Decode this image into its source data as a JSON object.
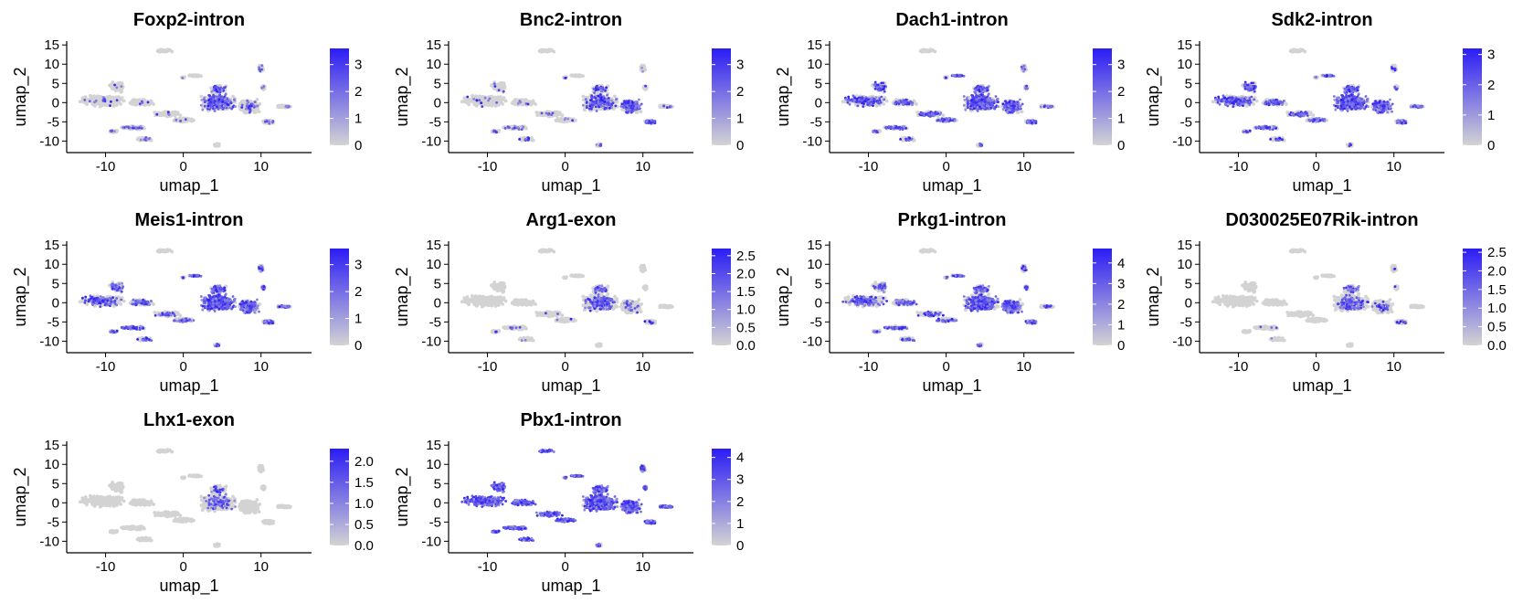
{
  "figure": {
    "colors": {
      "low": "#d3d3d3",
      "high": "#2b1cf5",
      "axis": "#000000",
      "text": "#000000",
      "background": "#ffffff"
    }
  },
  "chart_data": [
    {
      "type": "scatter",
      "title": "Foxp2-intron",
      "xlabel": "umap_1",
      "ylabel": "umap_2",
      "xlim": [
        -15,
        16.5
      ],
      "ylim": [
        -13,
        16
      ],
      "x_ticks": [
        -10,
        0,
        10
      ],
      "x_tick_labels": [
        "-10",
        "0",
        "10"
      ],
      "y_ticks": [
        15,
        10,
        5,
        0,
        -5,
        -10
      ],
      "y_tick_labels": [
        "15",
        "10",
        "5",
        "0",
        "-5",
        "-10"
      ],
      "legend": {
        "ticks": [
          0,
          1,
          2,
          3
        ],
        "labels": [
          "0",
          "1",
          "2",
          "3"
        ],
        "min": 0,
        "max": 3.6
      },
      "grid": false,
      "legend_position": "right",
      "expression": {
        "left": 0.04,
        "hub": 0.04,
        "center": 0.42,
        "right": 0.12,
        "tail": 0.08,
        "top_left": 0.0,
        "top_mid": 0.0,
        "top_right": 0.1,
        "lower_left": 0.18,
        "bottom_center": 0.05
      }
    },
    {
      "type": "scatter",
      "title": "Bnc2-intron",
      "xlabel": "umap_1",
      "ylabel": "umap_2",
      "xlim": [
        -15,
        16.5
      ],
      "ylim": [
        -13,
        16
      ],
      "x_ticks": [
        -10,
        0,
        10
      ],
      "x_tick_labels": [
        "-10",
        "0",
        "10"
      ],
      "y_ticks": [
        15,
        10,
        5,
        0,
        -5,
        -10
      ],
      "y_tick_labels": [
        "15",
        "10",
        "5",
        "0",
        "-5",
        "-10"
      ],
      "legend": {
        "ticks": [
          0,
          1,
          2,
          3
        ],
        "labels": [
          "0",
          "1",
          "2",
          "3"
        ],
        "min": 0,
        "max": 3.6
      },
      "grid": false,
      "legend_position": "right",
      "expression": {
        "left": 0.04,
        "hub": 0.05,
        "center": 0.28,
        "right": 0.62,
        "tail": 0.12,
        "top_left": 0.0,
        "top_mid": 0.0,
        "top_right": 0.06,
        "lower_left": 0.15,
        "bottom_center": 0.2
      }
    },
    {
      "type": "scatter",
      "title": "Dach1-intron",
      "xlabel": "umap_1",
      "ylabel": "umap_2",
      "xlim": [
        -15,
        16.5
      ],
      "ylim": [
        -13,
        16
      ],
      "x_ticks": [
        -10,
        0,
        10
      ],
      "x_tick_labels": [
        "-10",
        "0",
        "10"
      ],
      "y_ticks": [
        15,
        10,
        5,
        0,
        -5,
        -10
      ],
      "y_tick_labels": [
        "15",
        "10",
        "5",
        "0",
        "-5",
        "-10"
      ],
      "legend": {
        "ticks": [
          0,
          1,
          2,
          3
        ],
        "labels": [
          "0",
          "1",
          "2",
          "3"
        ],
        "min": 0,
        "max": 3.6
      },
      "grid": false,
      "legend_position": "right",
      "expression": {
        "left": 0.45,
        "hub": 0.5,
        "center": 0.7,
        "right": 0.55,
        "tail": 0.3,
        "top_left": 0.0,
        "top_mid": 0.6,
        "top_right": 0.15,
        "lower_left": 0.35,
        "bottom_center": 0.25
      }
    },
    {
      "type": "scatter",
      "title": "Sdk2-intron",
      "xlabel": "umap_1",
      "ylabel": "umap_2",
      "xlim": [
        -15,
        16.5
      ],
      "ylim": [
        -13,
        16
      ],
      "x_ticks": [
        -10,
        0,
        10
      ],
      "x_tick_labels": [
        "-10",
        "0",
        "10"
      ],
      "y_ticks": [
        15,
        10,
        5,
        0,
        -5,
        -10
      ],
      "y_tick_labels": [
        "15",
        "10",
        "5",
        "0",
        "-5",
        "-10"
      ],
      "legend": {
        "ticks": [
          0,
          1,
          2,
          3
        ],
        "labels": [
          "0",
          "1",
          "2",
          "3"
        ],
        "min": 0,
        "max": 3.2
      },
      "grid": false,
      "legend_position": "right",
      "expression": {
        "left": 0.55,
        "hub": 0.45,
        "center": 0.7,
        "right": 0.6,
        "tail": 0.35,
        "top_left": 0.0,
        "top_mid": 0.5,
        "top_right": 0.15,
        "lower_left": 0.3,
        "bottom_center": 0.15
      }
    },
    {
      "type": "scatter",
      "title": "Meis1-intron",
      "xlabel": "umap_1",
      "ylabel": "umap_2",
      "xlim": [
        -15,
        16.5
      ],
      "ylim": [
        -13,
        16
      ],
      "x_ticks": [
        -10,
        0,
        10
      ],
      "x_tick_labels": [
        "-10",
        "0",
        "10"
      ],
      "y_ticks": [
        15,
        10,
        5,
        0,
        -5,
        -10
      ],
      "y_tick_labels": [
        "15",
        "10",
        "5",
        "0",
        "-5",
        "-10"
      ],
      "legend": {
        "ticks": [
          0,
          1,
          2,
          3
        ],
        "labels": [
          "0",
          "1",
          "2",
          "3"
        ],
        "min": 0,
        "max": 3.6
      },
      "grid": false,
      "legend_position": "right",
      "expression": {
        "left": 0.4,
        "hub": 0.25,
        "center": 0.7,
        "right": 0.65,
        "tail": 0.45,
        "top_left": 0.0,
        "top_mid": 0.75,
        "top_right": 0.35,
        "lower_left": 0.45,
        "bottom_center": 0.4
      }
    },
    {
      "type": "scatter",
      "title": "Arg1-exon",
      "xlabel": "umap_1",
      "ylabel": "umap_2",
      "xlim": [
        -15,
        16.5
      ],
      "ylim": [
        -13,
        16
      ],
      "x_ticks": [
        -10,
        0,
        10
      ],
      "x_tick_labels": [
        "-10",
        "0",
        "10"
      ],
      "y_ticks": [
        15,
        10,
        5,
        0,
        -5,
        -10
      ],
      "y_tick_labels": [
        "15",
        "10",
        "5",
        "0",
        "-5",
        "-10"
      ],
      "legend": {
        "ticks": [
          0,
          0.5,
          1,
          1.5,
          2,
          2.5
        ],
        "labels": [
          "0.0",
          "0.5",
          "1.0",
          "1.5",
          "2.0",
          "2.5"
        ],
        "min": 0,
        "max": 2.7
      },
      "grid": false,
      "legend_position": "right",
      "expression": {
        "left": 0.0,
        "hub": 0.02,
        "center": 0.25,
        "right": 0.1,
        "tail": 0.0,
        "top_left": 0.0,
        "top_mid": 0.0,
        "top_right": 0.0,
        "lower_left": 0.05,
        "bottom_center": 0.0
      }
    },
    {
      "type": "scatter",
      "title": "Prkg1-intron",
      "xlabel": "umap_1",
      "ylabel": "umap_2",
      "xlim": [
        -15,
        16.5
      ],
      "ylim": [
        -13,
        16
      ],
      "x_ticks": [
        -10,
        0,
        10
      ],
      "x_tick_labels": [
        "-10",
        "0",
        "10"
      ],
      "y_ticks": [
        15,
        10,
        5,
        0,
        -5,
        -10
      ],
      "y_tick_labels": [
        "15",
        "10",
        "5",
        "0",
        "-5",
        "-10"
      ],
      "legend": {
        "ticks": [
          0,
          1,
          2,
          3,
          4
        ],
        "labels": [
          "0",
          "1",
          "2",
          "3",
          "4"
        ],
        "min": 0,
        "max": 4.7
      },
      "grid": false,
      "legend_position": "right",
      "expression": {
        "left": 0.35,
        "hub": 0.3,
        "center": 0.6,
        "right": 0.65,
        "tail": 0.2,
        "top_left": 0.0,
        "top_mid": 0.6,
        "top_right": 0.35,
        "lower_left": 0.3,
        "bottom_center": 0.35
      }
    },
    {
      "type": "scatter",
      "title": "D030025E07Rik-intron",
      "xlabel": "umap_1",
      "ylabel": "umap_2",
      "xlim": [
        -15,
        16.5
      ],
      "ylim": [
        -13,
        16
      ],
      "x_ticks": [
        -10,
        0,
        10
      ],
      "x_tick_labels": [
        "-10",
        "0",
        "10"
      ],
      "y_ticks": [
        15,
        10,
        5,
        0,
        -5,
        -10
      ],
      "y_tick_labels": [
        "15",
        "10",
        "5",
        "0",
        "-5",
        "-10"
      ],
      "legend": {
        "ticks": [
          0,
          0.5,
          1,
          1.5,
          2,
          2.5
        ],
        "labels": [
          "0.0",
          "0.5",
          "1.0",
          "1.5",
          "2.0",
          "2.5"
        ],
        "min": 0,
        "max": 2.6
      },
      "grid": false,
      "legend_position": "right",
      "expression": {
        "left": 0.0,
        "hub": 0.0,
        "center": 0.2,
        "right": 0.12,
        "tail": 0.0,
        "top_left": 0.0,
        "top_mid": 0.0,
        "top_right": 0.05,
        "lower_left": 0.02,
        "bottom_center": 0.0
      }
    },
    {
      "type": "scatter",
      "title": "Lhx1-exon",
      "xlabel": "umap_1",
      "ylabel": "umap_2",
      "xlim": [
        -15,
        16.5
      ],
      "ylim": [
        -13,
        16
      ],
      "x_ticks": [
        -10,
        0,
        10
      ],
      "x_tick_labels": [
        "-10",
        "0",
        "10"
      ],
      "y_ticks": [
        15,
        10,
        5,
        0,
        -5,
        -10
      ],
      "y_tick_labels": [
        "15",
        "10",
        "5",
        "0",
        "-5",
        "-10"
      ],
      "legend": {
        "ticks": [
          0,
          0.5,
          1,
          1.5,
          2
        ],
        "labels": [
          "0.0",
          "0.5",
          "1.0",
          "1.5",
          "2.0"
        ],
        "min": 0,
        "max": 2.3
      },
      "grid": false,
      "legend_position": "right",
      "expression": {
        "left": 0.0,
        "hub": 0.0,
        "center": 0.15,
        "right": 0.0,
        "tail": 0.0,
        "top_left": 0.0,
        "top_mid": 0.0,
        "top_right": 0.0,
        "lower_left": 0.0,
        "bottom_center": 0.0
      }
    },
    {
      "type": "scatter",
      "title": "Pbx1-intron",
      "xlabel": "umap_1",
      "ylabel": "umap_2",
      "xlim": [
        -15,
        16.5
      ],
      "ylim": [
        -13,
        16
      ],
      "x_ticks": [
        -10,
        0,
        10
      ],
      "x_tick_labels": [
        "-10",
        "0",
        "10"
      ],
      "y_ticks": [
        15,
        10,
        5,
        0,
        -5,
        -10
      ],
      "y_tick_labels": [
        "15",
        "10",
        "5",
        "0",
        "-5",
        "-10"
      ],
      "legend": {
        "ticks": [
          0,
          1,
          2,
          3,
          4
        ],
        "labels": [
          "0",
          "1",
          "2",
          "3",
          "4"
        ],
        "min": 0,
        "max": 4.4
      },
      "grid": false,
      "legend_position": "right",
      "expression": {
        "left": 0.95,
        "hub": 0.85,
        "center": 0.9,
        "right": 0.85,
        "tail": 0.9,
        "top_left": 1.0,
        "top_mid": 0.9,
        "top_right": 0.8,
        "lower_left": 0.95,
        "bottom_center": 0.7
      }
    }
  ]
}
